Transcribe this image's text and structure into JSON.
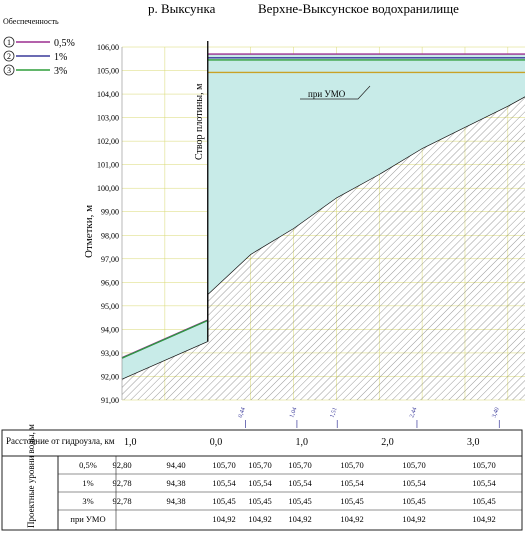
{
  "header": {
    "left_title": "р. Выксунка",
    "right_title": "Верхне-Выксунское водохранилище"
  },
  "legend": {
    "title": "Обеспеченность",
    "items": [
      {
        "num": "1",
        "label": "0,5%",
        "color": "#9b2d8f"
      },
      {
        "num": "2",
        "label": "1%",
        "color": "#3a3a9a"
      },
      {
        "num": "3",
        "label": "3%",
        "color": "#2e9e3a"
      }
    ]
  },
  "chart_data": {
    "type": "line",
    "ylabel": "Отметки, м",
    "ylim": [
      91.0,
      106.0
    ],
    "yticks": [
      "106,00",
      "105,00",
      "104,00",
      "103,00",
      "102,00",
      "101,00",
      "100,00",
      "99,00",
      "98,00",
      "97,00",
      "96,00",
      "95,00",
      "94,00",
      "93,00",
      "92,00",
      "91,00"
    ],
    "xlim": [
      -1.0,
      3.7
    ],
    "dam_label": "Створ плотины, м",
    "umo_label": "при УМО",
    "series": [
      {
        "name": "0,5%",
        "color": "#9b2d8f",
        "x": [
          -1.0,
          0.0,
          0.0,
          3.7
        ],
        "y": [
          92.8,
          94.4,
          105.7,
          105.7
        ]
      },
      {
        "name": "1%",
        "color": "#3a3a9a",
        "x": [
          -1.0,
          0.0,
          0.0,
          3.7
        ],
        "y": [
          92.78,
          94.38,
          105.54,
          105.54
        ]
      },
      {
        "name": "3%",
        "color": "#2e9e3a",
        "x": [
          -1.0,
          0.0,
          0.0,
          3.7
        ],
        "y": [
          92.78,
          94.38,
          105.45,
          105.45
        ]
      },
      {
        "name": "при УМО",
        "color": "#c9a227",
        "x": [
          0.0,
          3.7
        ],
        "y": [
          104.92,
          104.92
        ]
      }
    ],
    "bottom_profile": {
      "x": [
        -1.0,
        0.0,
        0.0,
        0.5,
        1.0,
        1.5,
        2.0,
        2.5,
        3.0,
        3.5,
        3.7
      ],
      "y": [
        91.9,
        93.5,
        95.5,
        97.2,
        98.3,
        99.6,
        100.6,
        101.7,
        102.6,
        103.5,
        103.9
      ]
    },
    "distance_marks": [
      {
        "x": 0.44,
        "label": "0,44"
      },
      {
        "x": 1.04,
        "label": "1,04"
      },
      {
        "x": 1.51,
        "label": "1,51"
      },
      {
        "x": 2.44,
        "label": "2,44"
      },
      {
        "x": 3.4,
        "label": "3,40"
      }
    ]
  },
  "table": {
    "distance_header": "Расстояние от гидроузла, км",
    "distance_ticks": [
      {
        "x": -1.0,
        "label": "1,0"
      },
      {
        "x": 0.0,
        "label": "0,0"
      },
      {
        "x": 1.0,
        "label": "1,0"
      },
      {
        "x": 2.0,
        "label": "2,0"
      },
      {
        "x": 3.0,
        "label": "3,0"
      }
    ],
    "levels_header": "Проектные уровни воды, м",
    "rows": [
      {
        "label": "0,5%",
        "values": [
          "92,80",
          "94,40",
          "105,70",
          "105,70",
          "105,70",
          "105,70",
          "105,70",
          "105,70"
        ]
      },
      {
        "label": "1%",
        "values": [
          "92,78",
          "94,38",
          "105,54",
          "105,54",
          "105,54",
          "105,54",
          "105,54",
          "105,54"
        ]
      },
      {
        "label": "3%",
        "values": [
          "92,78",
          "94,38",
          "105,45",
          "105,45",
          "105,45",
          "105,45",
          "105,45",
          "105,45"
        ]
      },
      {
        "label": "при УМО",
        "values": [
          "",
          "",
          "104,92",
          "104,92",
          "104,92",
          "104,92",
          "104,92",
          "104,92"
        ]
      }
    ]
  }
}
